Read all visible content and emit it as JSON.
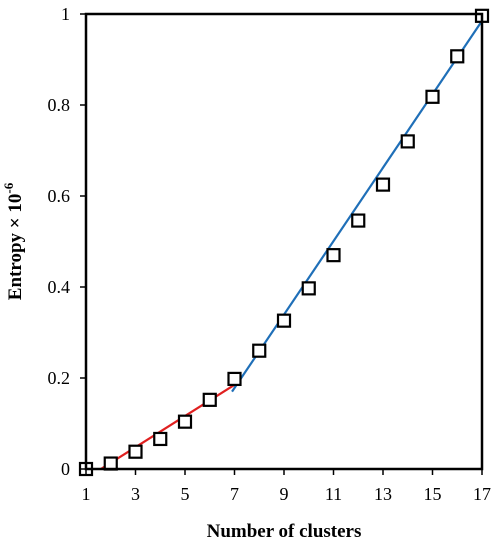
{
  "chart_data": {
    "type": "scatter",
    "xlabel": "Number of clusters",
    "ylabel": "Entropy × 10",
    "ylabel_superscript": "-6",
    "xlim": [
      1,
      17
    ],
    "ylim": [
      0,
      1
    ],
    "x_ticks": [
      "1",
      "3",
      "5",
      "7",
      "9",
      "11",
      "13",
      "15",
      "17"
    ],
    "y_ticks": [
      "0",
      "0.2",
      "0.4",
      "0.6",
      "0.8",
      "1"
    ],
    "grid": false,
    "legend": "none",
    "series": [
      {
        "marker": "open-square",
        "color": "#000000",
        "x": [
          1,
          2,
          3,
          4,
          5,
          6,
          7,
          8,
          9,
          10,
          11,
          12,
          13,
          14,
          15,
          16,
          17
        ],
        "y": [
          0.0,
          0.012,
          0.038,
          0.066,
          0.104,
          0.152,
          0.198,
          0.26,
          0.326,
          0.397,
          0.47,
          0.546,
          0.625,
          0.72,
          0.818,
          0.907,
          0.996
        ]
      }
    ],
    "fit_lines": [
      {
        "color": "#e02020",
        "x": [
          1.6,
          7
        ],
        "y": [
          0.0,
          0.185
        ]
      },
      {
        "color": "#1f6fb8",
        "x": [
          6.9,
          17
        ],
        "y": [
          0.17,
          0.985
        ]
      }
    ]
  }
}
